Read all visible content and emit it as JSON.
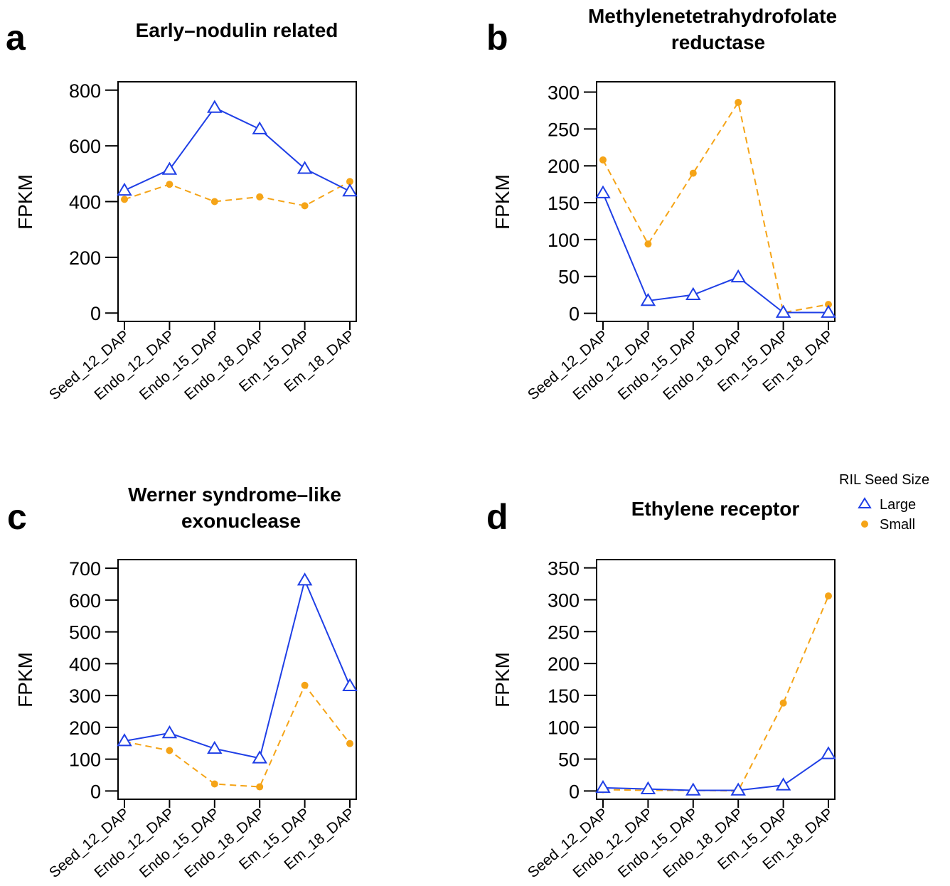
{
  "legend": {
    "title": "RIL Seed Size",
    "items": [
      {
        "label": "Large",
        "marker": "triangle-open",
        "color": "#1f3fe6",
        "line": "solid"
      },
      {
        "label": "Small",
        "marker": "circle-filled",
        "color": "#f5a417",
        "line": "dashed"
      }
    ]
  },
  "colors": {
    "large": "#1f3fe6",
    "small": "#f5a417"
  },
  "chart_data": [
    {
      "panel": "a",
      "type": "line",
      "title_lines": [
        "Early–nodulin related"
      ],
      "ylabel": "FPKM",
      "categories": [
        "Seed_12_DAP",
        "Endo_12_DAP",
        "Endo_15_DAP",
        "Endo_18_DAP",
        "Em_15_DAP",
        "Em_18_DAP"
      ],
      "yticks": [
        0,
        200,
        400,
        600,
        800
      ],
      "ylim": [
        -30,
        830
      ],
      "series": [
        {
          "name": "Large",
          "values": [
            440,
            515,
            737,
            660,
            518,
            437
          ]
        },
        {
          "name": "Small",
          "values": [
            408,
            462,
            400,
            417,
            385,
            472
          ]
        }
      ]
    },
    {
      "panel": "b",
      "type": "line",
      "title_lines": [
        "Methylenetetrahydrofolate",
        "reductase"
      ],
      "ylabel": "FPKM",
      "categories": [
        "Seed_12_DAP",
        "Endo_12_DAP",
        "Endo_15_DAP",
        "Endo_18_DAP",
        "Em_15_DAP",
        "Em_18_DAP"
      ],
      "yticks": [
        0,
        50,
        100,
        150,
        200,
        250,
        300
      ],
      "ylim": [
        -11,
        314
      ],
      "series": [
        {
          "name": "Large",
          "values": [
            163,
            17,
            25,
            49,
            1,
            1
          ]
        },
        {
          "name": "Small",
          "values": [
            208,
            94,
            190,
            286,
            1,
            12
          ]
        }
      ]
    },
    {
      "panel": "c",
      "type": "line",
      "title_lines": [
        "Werner syndrome–like",
        "exonuclease"
      ],
      "ylabel": "FPKM",
      "categories": [
        "Seed_12_DAP",
        "Endo_12_DAP",
        "Endo_15_DAP",
        "Endo_18_DAP",
        "Em_15_DAP",
        "Em_18_DAP"
      ],
      "yticks": [
        0,
        100,
        200,
        300,
        400,
        500,
        600,
        700
      ],
      "ylim": [
        -26,
        727
      ],
      "series": [
        {
          "name": "Large",
          "values": [
            157,
            182,
            133,
            103,
            662,
            330
          ]
        },
        {
          "name": "Small",
          "values": [
            155,
            127,
            22,
            13,
            332,
            149
          ]
        }
      ]
    },
    {
      "panel": "d",
      "type": "line",
      "title_lines": [
        "Ethylene receptor"
      ],
      "ylabel": "FPKM",
      "categories": [
        "Seed_12_DAP",
        "Endo_12_DAP",
        "Endo_15_DAP",
        "Endo_18_DAP",
        "Em_15_DAP",
        "Em_18_DAP"
      ],
      "yticks": [
        0,
        50,
        100,
        150,
        200,
        250,
        300,
        350
      ],
      "ylim": [
        -13,
        363
      ],
      "series": [
        {
          "name": "Large",
          "values": [
            5,
            3,
            1,
            1,
            9,
            58
          ]
        },
        {
          "name": "Small",
          "values": [
            2,
            1,
            1,
            0,
            138,
            306
          ]
        }
      ]
    }
  ]
}
